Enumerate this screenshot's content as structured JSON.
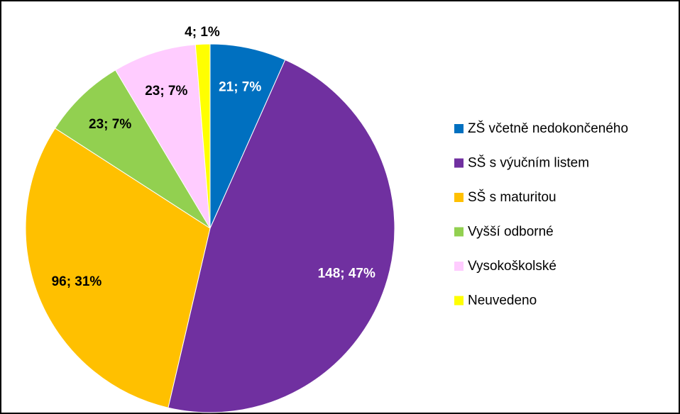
{
  "chart_data": {
    "type": "pie",
    "categories": [
      "ZŠ včetně nedokončeného",
      "SŠ s výučním listem",
      "SŠ s maturitou",
      "Vyšší odborné",
      "Vysokoškolské",
      "Neuvedeno"
    ],
    "values": [
      21,
      148,
      96,
      23,
      23,
      4
    ],
    "value_labels": [
      "21; 7%",
      "148; 47%",
      "96; 31%",
      "23; 7%",
      "23; 7%",
      "4; 1%"
    ],
    "colors": [
      "#0070c0",
      "#7030a0",
      "#ffc000",
      "#92d050",
      "#ffccff",
      "#ffff00"
    ],
    "legend": "right"
  }
}
